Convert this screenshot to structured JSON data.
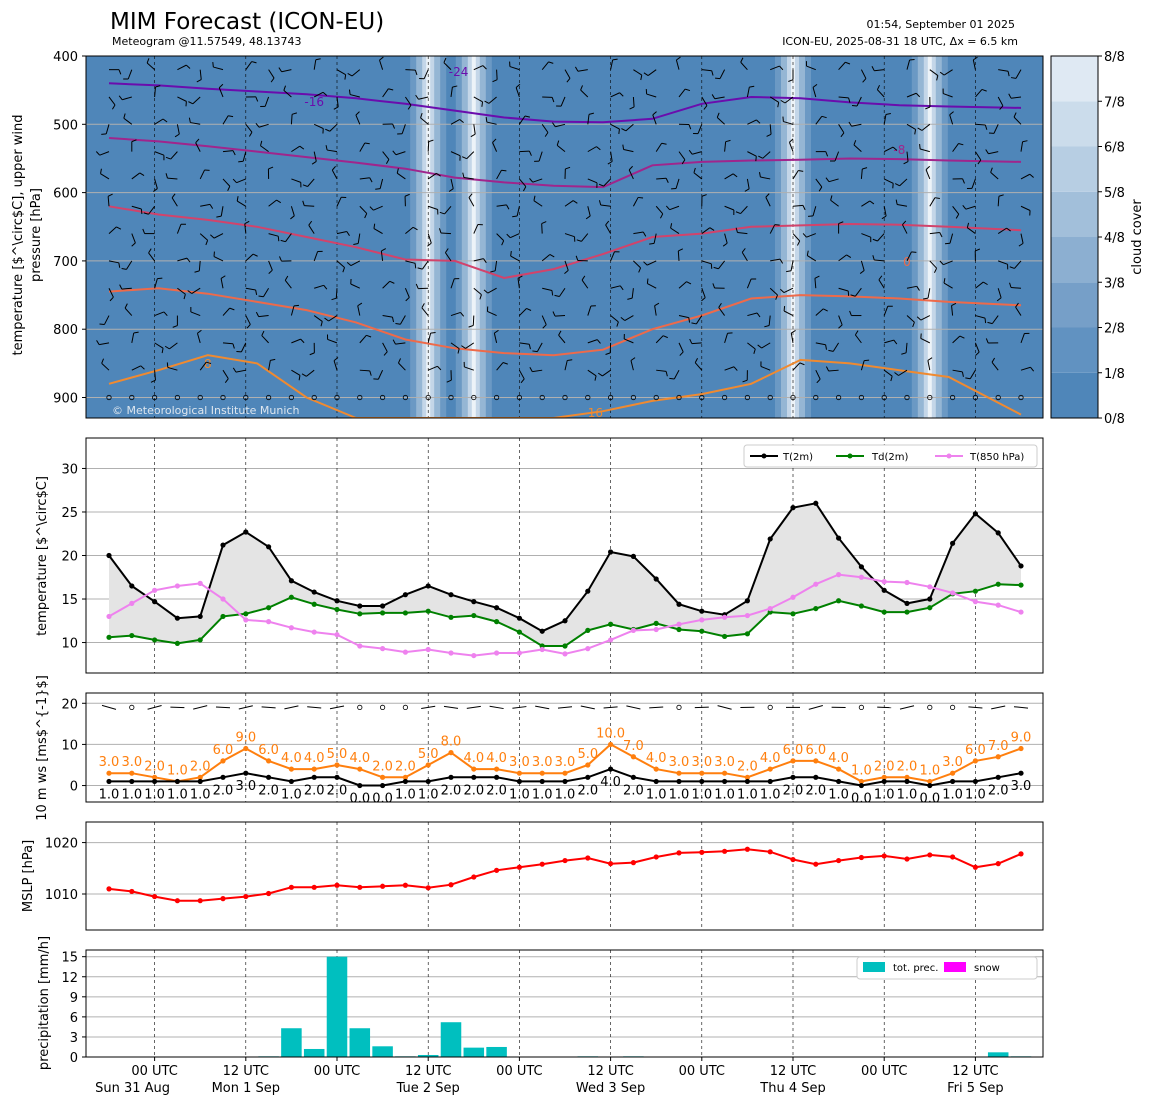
{
  "header": {
    "title": "MIM Forecast (ICON-EU)",
    "subtitle": "Meteogram @11.57549, 48.13743",
    "timestamp": "01:54, September 01 2025",
    "run_info": "ICON-EU, 2025-08-31 18 UTC, Δx = 6.5 km",
    "copyright": "© Meteorological Institute Munich"
  },
  "colors": {
    "cloud_base": "#4f86b9",
    "t2m": "#000000",
    "td2m": "#008000",
    "t850": "#ee82ee",
    "wind_speed": "#ff7f0e",
    "mslp": "#ff0000",
    "tot_prec": "#00bfbf",
    "snow": "#ff00ff"
  },
  "time_axis": {
    "tick_labels": [
      "00 UTC",
      "12 UTC",
      "00 UTC",
      "12 UTC",
      "00 UTC",
      "12 UTC",
      "00 UTC",
      "12 UTC",
      "00 UTC",
      "12 UTC"
    ],
    "day_labels": [
      "Sun 31 Aug",
      "Mon 1 Sep",
      "Tue 2 Sep",
      "Wed 3 Sep",
      "Thu 4 Sep",
      "Fri 5 Sep"
    ]
  },
  "chart_data": [
    {
      "type": "heatmap",
      "panel": "upper_air",
      "ylabel_line1": "temperature [$^\\circ$C], upper wind",
      "ylabel_line2": "pressure [hPa]",
      "yticks": [
        "400",
        "500",
        "600",
        "700",
        "800",
        "900"
      ],
      "ylim": [
        930,
        400
      ],
      "colorbar_label": "cloud cover",
      "colorbar_ticks": [
        "0/8",
        "1/8",
        "2/8",
        "3/8",
        "4/8",
        "5/8",
        "6/8",
        "7/8",
        "8/8"
      ],
      "isotherm_labels": [
        "-24",
        "-16",
        "-8",
        "0",
        "8",
        "16"
      ],
      "high_cloud_hours": [
        42,
        48,
        90,
        108
      ]
    },
    {
      "type": "line",
      "panel": "temperature",
      "ylabel": "temperature [$^\\circ$C]",
      "yticks": [
        "10",
        "15",
        "20",
        "25",
        "30"
      ],
      "ylim": [
        6.5,
        33.5
      ],
      "x_hours": [
        0,
        3,
        6,
        9,
        12,
        15,
        18,
        21,
        24,
        27,
        30,
        33,
        36,
        39,
        42,
        45,
        48,
        51,
        54,
        57,
        60,
        63,
        66,
        69,
        72,
        75,
        78,
        81,
        84,
        87,
        90,
        93,
        96,
        99,
        102,
        105,
        108,
        111,
        114,
        117,
        120
      ],
      "series": [
        {
          "name": "T(2m)",
          "values": [
            20.0,
            16.5,
            14.7,
            12.8,
            13.0,
            21.2,
            22.7,
            21.0,
            17.1,
            15.8,
            14.8,
            14.2,
            14.2,
            15.5,
            16.5,
            15.5,
            14.7,
            14.0,
            12.8,
            11.3,
            12.5,
            15.9,
            20.4,
            19.9,
            17.3,
            14.4,
            13.6,
            13.2,
            14.8,
            21.9,
            25.5,
            26.0,
            22.0,
            18.7,
            16.0,
            14.5,
            15.0,
            21.4,
            24.8,
            22.6,
            18.8
          ]
        },
        {
          "name": "Td(2m)",
          "values": [
            10.6,
            10.8,
            10.3,
            9.9,
            10.3,
            13.0,
            13.3,
            14.0,
            15.2,
            14.4,
            13.8,
            13.3,
            13.4,
            13.4,
            13.6,
            12.9,
            13.1,
            12.4,
            11.2,
            9.6,
            9.6,
            11.4,
            12.1,
            11.5,
            12.2,
            11.5,
            11.3,
            10.7,
            11.0,
            13.5,
            13.3,
            13.9,
            14.8,
            14.2,
            13.5,
            13.5,
            14.0,
            15.6,
            15.9,
            16.7,
            16.6
          ]
        },
        {
          "name": "T(850 hPa)",
          "values": [
            13.0,
            14.5,
            16.0,
            16.5,
            16.8,
            15.0,
            12.6,
            12.4,
            11.7,
            11.2,
            10.9,
            9.6,
            9.3,
            8.9,
            9.2,
            8.8,
            8.5,
            8.8,
            8.8,
            9.2,
            8.7,
            9.3,
            10.3,
            11.4,
            11.5,
            12.1,
            12.6,
            12.9,
            13.1,
            13.9,
            15.2,
            16.7,
            17.8,
            17.5,
            17.0,
            16.9,
            16.4,
            15.7,
            14.7,
            14.3,
            13.5
          ]
        }
      ]
    },
    {
      "type": "line",
      "panel": "wind",
      "ylabel": "10 m ws [ms$^{-1}$]",
      "yticks": [
        "0",
        "10",
        "20"
      ],
      "ylim": [
        -4,
        22.5
      ],
      "x_hours": [
        0,
        3,
        6,
        9,
        12,
        15,
        18,
        21,
        24,
        27,
        30,
        33,
        36,
        39,
        42,
        45,
        48,
        51,
        54,
        57,
        60,
        63,
        66,
        69,
        72,
        75,
        78,
        81,
        84,
        87,
        90,
        93,
        96,
        99,
        102,
        105,
        108,
        111,
        114,
        117,
        120
      ],
      "series": [
        {
          "name": "gust",
          "values": [
            3.0,
            3.0,
            2.0,
            1.0,
            2.0,
            6.0,
            9.0,
            6.0,
            4.0,
            4.0,
            5.0,
            4.0,
            2.0,
            2.0,
            5.0,
            8.0,
            4.0,
            4.0,
            3.0,
            3.0,
            3.0,
            5.0,
            10.0,
            7.0,
            4.0,
            3.0,
            3.0,
            3.0,
            2.0,
            4.0,
            6.0,
            6.0,
            4.0,
            1.0,
            2.0,
            2.0,
            1.0,
            3.0,
            6.0,
            7.0,
            9.0
          ],
          "labels": [
            "3.0",
            "3.0",
            "2.0",
            "1.0",
            "2.0",
            "6.0",
            "9.0",
            "6.0",
            "4.0",
            "4.0",
            "5.0",
            "4.0",
            "2.0",
            "2.0",
            "5.0",
            "8.0",
            "4.0",
            "4.0",
            "3.0",
            "3.0",
            "3.0",
            "5.0",
            "10.0",
            "7.0",
            "4.0",
            "3.0",
            "3.0",
            "3.0",
            "2.0",
            "4.0",
            "6.0",
            "6.0",
            "4.0",
            "1.0",
            "2.0",
            "2.0",
            "1.0",
            "3.0",
            "6.0",
            "7.0",
            "9.0"
          ]
        },
        {
          "name": "mean",
          "values": [
            1.0,
            1.0,
            1.0,
            1.0,
            1.0,
            2.0,
            3.0,
            2.0,
            1.0,
            2.0,
            2.0,
            0.0,
            0.0,
            1.0,
            1.0,
            2.0,
            2.0,
            2.0,
            1.0,
            1.0,
            1.0,
            2.0,
            4.0,
            2.0,
            1.0,
            1.0,
            1.0,
            1.0,
            1.0,
            1.0,
            2.0,
            2.0,
            1.0,
            0.0,
            1.0,
            1.0,
            0.0,
            1.0,
            1.0,
            2.0,
            3.0
          ],
          "labels": [
            "1.0",
            "1.0",
            "1.0",
            "1.0",
            "1.0",
            "2.0",
            "3.0",
            "2.0",
            "1.0",
            "2.0",
            "2.0",
            "0.0",
            "0.0",
            "1.0",
            "1.0",
            "2.0",
            "2.0",
            "2.0",
            "1.0",
            "1.0",
            "1.0",
            "2.0",
            "4.0",
            "2.0",
            "1.0",
            "1.0",
            "1.0",
            "1.0",
            "1.0",
            "1.0",
            "2.0",
            "2.0",
            "1.0",
            "0.0",
            "1.0",
            "1.0",
            "0.0",
            "1.0",
            "1.0",
            "2.0",
            "3.0"
          ]
        }
      ]
    },
    {
      "type": "line",
      "panel": "pressure",
      "ylabel": "MSLP [hPa]",
      "yticks": [
        "1010",
        "1020"
      ],
      "ylim": [
        1003,
        1024
      ],
      "x_hours": [
        0,
        3,
        6,
        9,
        12,
        15,
        18,
        21,
        24,
        27,
        30,
        33,
        36,
        39,
        42,
        45,
        48,
        51,
        54,
        57,
        60,
        63,
        66,
        69,
        72,
        75,
        78,
        81,
        84,
        87,
        90,
        93,
        96,
        99,
        102,
        105,
        108,
        111,
        114,
        117,
        120
      ],
      "series": [
        {
          "name": "MSLP",
          "values": [
            1011.0,
            1010.5,
            1009.5,
            1008.7,
            1008.7,
            1009.1,
            1009.5,
            1010.1,
            1011.3,
            1011.3,
            1011.7,
            1011.3,
            1011.5,
            1011.7,
            1011.2,
            1011.8,
            1013.3,
            1014.6,
            1015.2,
            1015.8,
            1016.5,
            1017.0,
            1015.9,
            1016.1,
            1017.2,
            1018.0,
            1018.1,
            1018.3,
            1018.7,
            1018.2,
            1016.7,
            1015.8,
            1016.5,
            1017.1,
            1017.4,
            1016.8,
            1017.6,
            1017.2,
            1015.2,
            1015.9,
            1017.8
          ]
        }
      ]
    },
    {
      "type": "bar",
      "panel": "precipitation",
      "ylabel": "precipitation [mm/h]",
      "yticks": [
        "0",
        "3",
        "6",
        "9",
        "12",
        "15"
      ],
      "ylim": [
        0,
        16
      ],
      "x_hours": [
        0,
        3,
        6,
        9,
        12,
        15,
        18,
        21,
        24,
        27,
        30,
        33,
        36,
        39,
        42,
        45,
        48,
        51,
        54,
        57,
        60,
        63,
        66,
        69,
        72,
        75,
        78,
        81,
        84,
        87,
        90,
        93,
        96,
        99,
        102,
        105,
        108,
        111,
        114,
        117,
        120
      ],
      "series": [
        {
          "name": "tot. prec.",
          "values": [
            0,
            0,
            0,
            0,
            0,
            0,
            0,
            0.1,
            4.3,
            1.2,
            15.0,
            4.3,
            1.6,
            0.1,
            0.3,
            5.2,
            1.4,
            1.5,
            0,
            0,
            0,
            0.1,
            0,
            0.1,
            0,
            0,
            0,
            0,
            0,
            0,
            0,
            0,
            0,
            0,
            0,
            0,
            0,
            0,
            0,
            0.7,
            0.1
          ]
        },
        {
          "name": "snow",
          "values": [
            0,
            0,
            0,
            0,
            0,
            0,
            0,
            0,
            0,
            0,
            0,
            0,
            0,
            0,
            0,
            0,
            0,
            0,
            0,
            0,
            0,
            0,
            0,
            0,
            0,
            0,
            0,
            0,
            0,
            0,
            0,
            0,
            0,
            0,
            0,
            0,
            0,
            0,
            0,
            0,
            0
          ]
        }
      ]
    }
  ]
}
